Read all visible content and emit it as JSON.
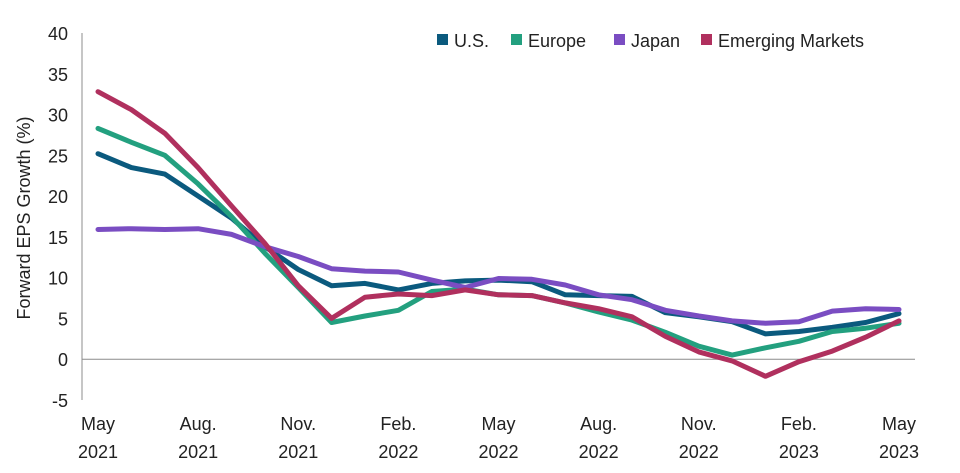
{
  "chart_data": {
    "type": "line",
    "ylabel": "Forward EPS Growth (%)",
    "ylim": [
      -5,
      40
    ],
    "yticks": [
      -5,
      0,
      5,
      10,
      15,
      20,
      25,
      30,
      35,
      40
    ],
    "x": [
      "2021-05",
      "2021-06",
      "2021-07",
      "2021-08",
      "2021-09",
      "2021-10",
      "2021-11",
      "2021-12",
      "2022-01",
      "2022-02",
      "2022-03",
      "2022-04",
      "2022-05",
      "2022-06",
      "2022-07",
      "2022-08",
      "2022-09",
      "2022-10",
      "2022-11",
      "2022-12",
      "2023-01",
      "2023-02",
      "2023-03",
      "2023-04",
      "2023-05"
    ],
    "xticks": [
      {
        "line1": "May",
        "line2": "2021"
      },
      {
        "line1": "Aug.",
        "line2": "2021"
      },
      {
        "line1": "Nov.",
        "line2": "2021"
      },
      {
        "line1": "Feb.",
        "line2": "2022"
      },
      {
        "line1": "May",
        "line2": "2022"
      },
      {
        "line1": "Aug.",
        "line2": "2022"
      },
      {
        "line1": "Nov.",
        "line2": "2022"
      },
      {
        "line1": "Feb.",
        "line2": "2023"
      },
      {
        "line1": "May",
        "line2": "2023"
      }
    ],
    "legend_position": "top-right",
    "grid": false,
    "series": [
      {
        "name": "U.S.",
        "color": "#0b5a7e",
        "values": [
          25.2,
          23.5,
          22.7,
          20.0,
          17.3,
          13.8,
          11.0,
          9.0,
          9.3,
          8.5,
          9.3,
          9.6,
          9.7,
          9.5,
          7.9,
          7.8,
          7.7,
          5.7,
          5.2,
          4.6,
          3.1,
          3.4,
          3.9,
          4.5,
          5.6
        ]
      },
      {
        "name": "Europe",
        "color": "#23a07f",
        "values": [
          28.3,
          26.6,
          25.0,
          21.5,
          17.5,
          13.0,
          8.8,
          4.5,
          5.3,
          6.0,
          8.3,
          8.6,
          7.9,
          7.8,
          6.9,
          5.8,
          4.8,
          3.3,
          1.6,
          0.5,
          1.4,
          2.2,
          3.4,
          3.8,
          4.4
        ]
      },
      {
        "name": "Japan",
        "color": "#7a4dc2",
        "values": [
          15.9,
          16.0,
          15.9,
          16.0,
          15.3,
          13.8,
          12.6,
          11.1,
          10.8,
          10.7,
          9.7,
          8.8,
          9.9,
          9.8,
          9.1,
          7.9,
          7.3,
          6.0,
          5.3,
          4.7,
          4.4,
          4.6,
          5.9,
          6.2,
          6.1
        ]
      },
      {
        "name": "Emerging Markets",
        "color": "#b0305e",
        "values": [
          32.8,
          30.6,
          27.7,
          23.5,
          18.8,
          14.2,
          9.0,
          5.0,
          7.6,
          8.0,
          7.8,
          8.5,
          7.9,
          7.8,
          6.9,
          6.2,
          5.2,
          2.8,
          0.9,
          -0.2,
          -2.1,
          -0.3,
          1.0,
          2.7,
          4.7
        ]
      }
    ]
  }
}
